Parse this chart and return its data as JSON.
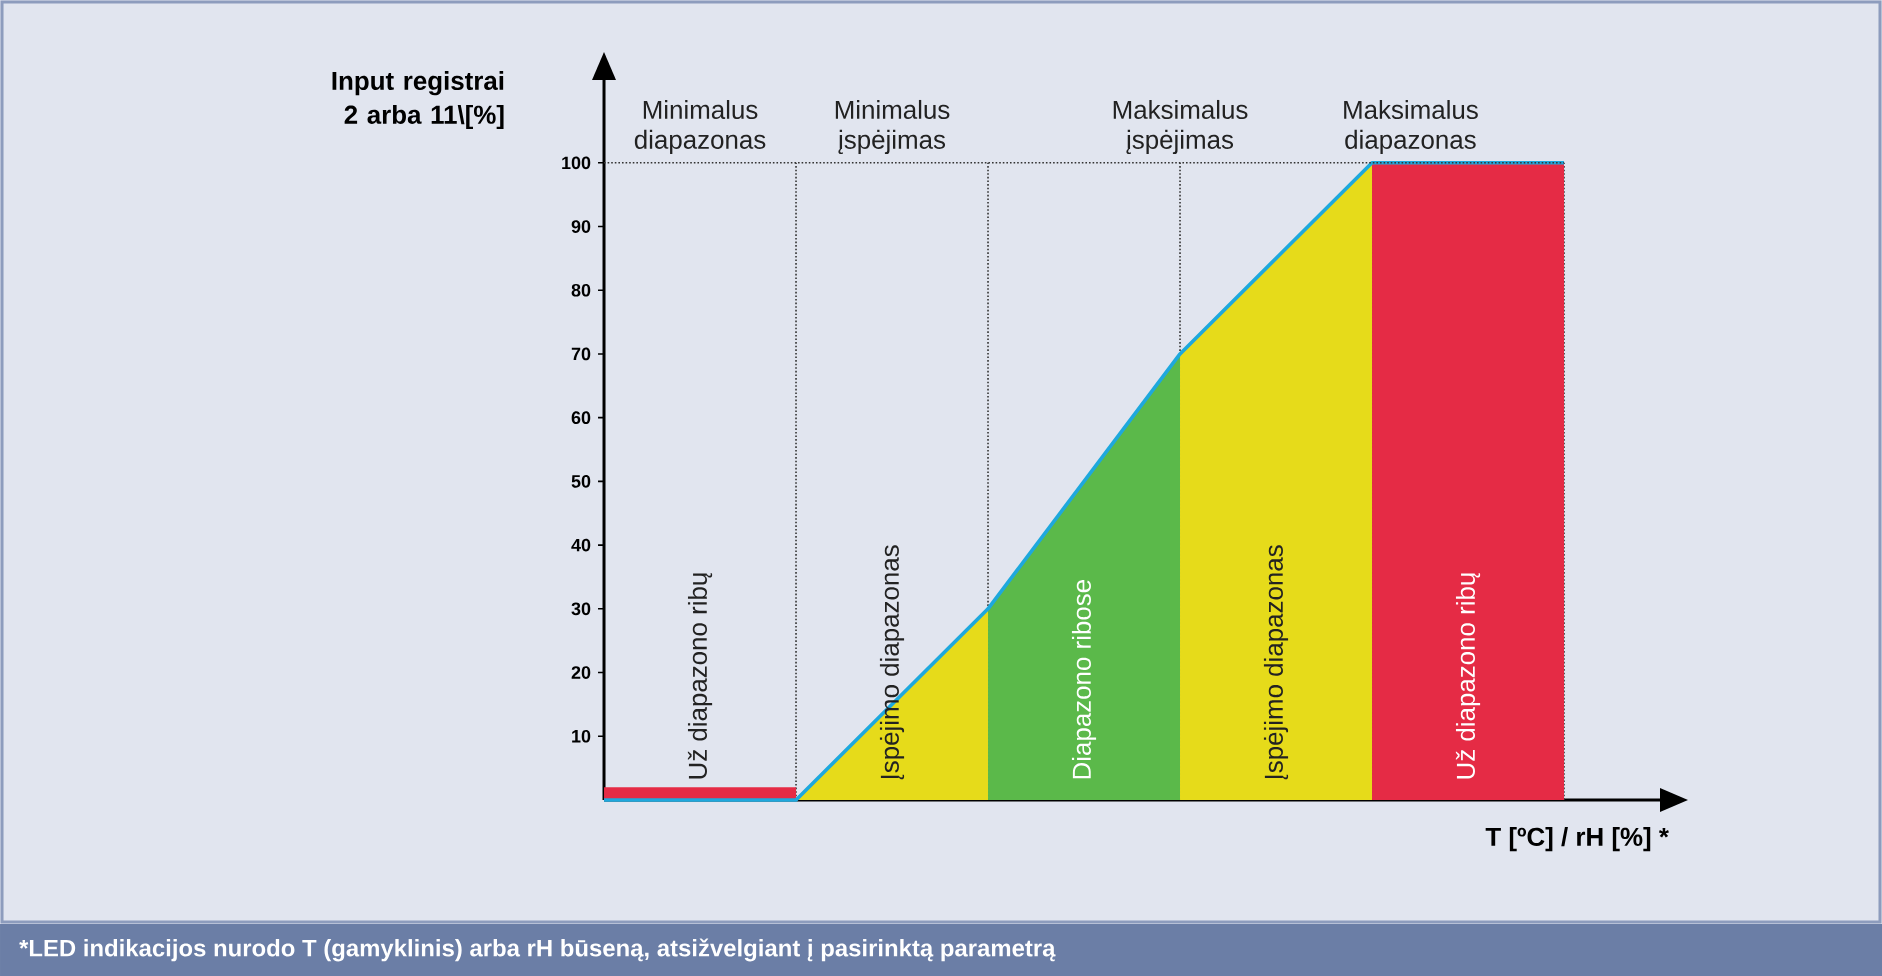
{
  "chart_data": {
    "type": "area",
    "ylabel": "Input registrai 2 arba 11\\[%]",
    "xlabel": "T [ºC] / rH [%] *",
    "categories": [
      null,
      null,
      null,
      null,
      null,
      null
    ],
    "ylim": [
      0,
      113
    ],
    "grid": "x",
    "yticks": [
      10,
      20,
      30,
      40,
      50,
      60,
      70,
      80,
      90,
      100
    ],
    "series": [
      {
        "color": "#e52b45",
        "values": [
          2,
          2,
          null,
          null,
          null,
          null
        ]
      },
      {
        "color": "#e6db1a",
        "values": [
          null,
          0,
          30,
          null,
          null,
          null
        ]
      },
      {
        "color": "#5bb94a",
        "values": [
          null,
          null,
          30,
          70,
          null,
          null
        ]
      },
      {
        "color": "#e6db1a",
        "values": [
          null,
          null,
          null,
          70,
          100,
          null
        ]
      },
      {
        "color": "#e52b45",
        "values": [
          null,
          null,
          null,
          null,
          100,
          100
        ]
      },
      {
        "type": "line",
        "color": "#1ea8dd",
        "values": [
          0,
          0,
          30,
          70,
          100,
          100
        ]
      }
    ],
    "ref_lines": [
      {
        "axis": "y",
        "value": 100,
        "line_style": "dotted",
        "color": "#333333"
      }
    ],
    "annotations": [
      "Minimalus diapazonas",
      "Minimalus įspėjimas",
      "Maksimalus įspėjimas",
      "Maksimalus diapazonas",
      "Už diapazono ribų",
      "Įspėjimo diapazonas",
      "Diapazono ribose",
      "Įspėjimo diapazonas",
      "Už diapazono ribų",
      "*LED indikacijos nurodo T (gamyklinis) arba rH būseną, atsižvelgiant į pasirinktą parametrą"
    ]
  }
}
